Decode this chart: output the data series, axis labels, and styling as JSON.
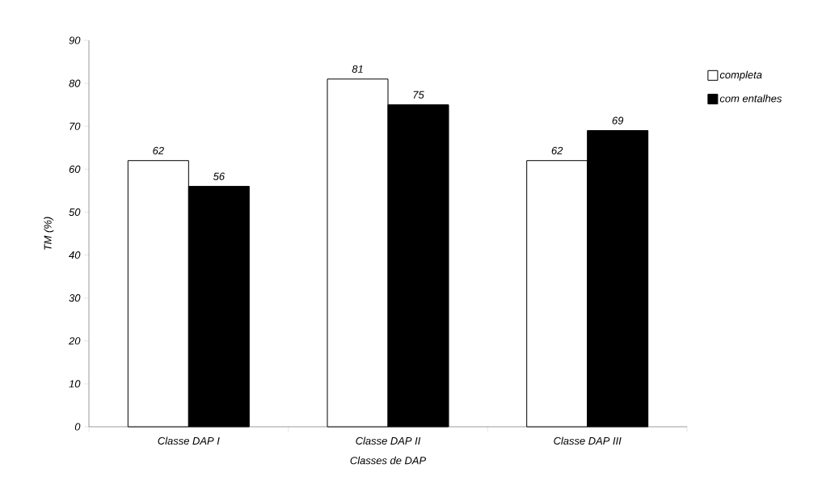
{
  "chart_data": {
    "type": "bar",
    "xlabel": "Classes de DAP",
    "ylabel": "TM (%)",
    "categories": [
      "Classe DAP I",
      "Classe DAP II",
      "Classe DAP III"
    ],
    "series": [
      {
        "name": "completa",
        "color": "#ffffff",
        "values": [
          62,
          81,
          62
        ]
      },
      {
        "name": "com entalhes",
        "color": "#000000",
        "values": [
          56,
          75,
          69
        ]
      }
    ],
    "ylim": [
      0,
      90
    ],
    "yticks": [
      0,
      10,
      20,
      30,
      40,
      50,
      60,
      70,
      80,
      90
    ],
    "data_labels": true,
    "legend": "top right",
    "grid": false
  }
}
